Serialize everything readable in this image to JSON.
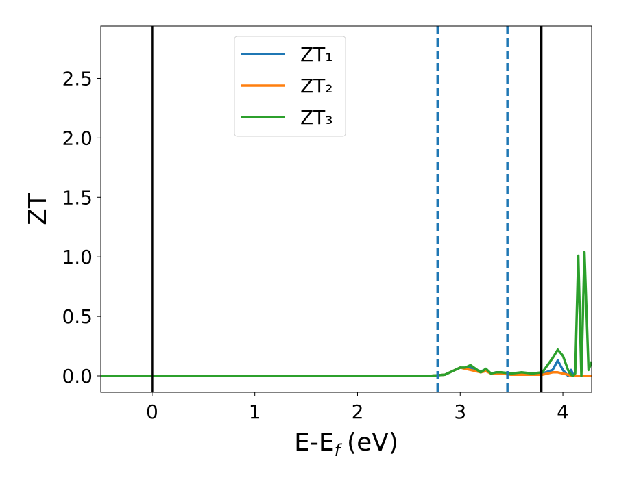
{
  "chart_data": {
    "type": "line",
    "x_label": [
      "E-E",
      "f",
      "(eV)"
    ],
    "y_label": "ZT",
    "x": [
      -0.5,
      2.7,
      2.85,
      2.95,
      3.0,
      3.05,
      3.1,
      3.15,
      3.2,
      3.25,
      3.3,
      3.35,
      3.4,
      3.5,
      3.6,
      3.7,
      3.8,
      3.9,
      3.95,
      4.0,
      4.05,
      4.08,
      4.1,
      4.12,
      4.15,
      4.18,
      4.21,
      4.25,
      4.28
    ],
    "series": [
      {
        "name": "ZT₁",
        "color": "#1f77b4",
        "values": [
          0,
          0,
          0.01,
          0.05,
          0.07,
          0.06,
          0.07,
          0.05,
          0.04,
          0.05,
          0.02,
          0.03,
          0.02,
          0.01,
          0.02,
          0.01,
          0.02,
          0.05,
          0.13,
          0.05,
          0.0,
          0.05,
          0.01,
          null,
          null,
          null,
          null,
          null,
          null
        ]
      },
      {
        "name": "ZT₂",
        "color": "#ff7f0e",
        "values": [
          0,
          0,
          0.01,
          0.05,
          0.07,
          0.06,
          0.05,
          0.04,
          0.03,
          0.04,
          0.02,
          0.02,
          0.02,
          0.01,
          0.01,
          0.01,
          0.01,
          0.03,
          0.03,
          0.02,
          0.01,
          0.0,
          0,
          0,
          0,
          0,
          0,
          0,
          0
        ]
      },
      {
        "name": "ZT₃",
        "color": "#2ca02c",
        "values": [
          0,
          0,
          0.01,
          0.05,
          0.07,
          0.07,
          0.09,
          0.06,
          0.03,
          0.06,
          0.02,
          0.03,
          0.03,
          0.02,
          0.03,
          0.02,
          0.03,
          0.15,
          0.22,
          0.17,
          0.05,
          0.01,
          0.0,
          0.02,
          1.01,
          0.0,
          1.04,
          0.05,
          0.12
        ]
      }
    ],
    "vlines": [
      {
        "x": 0,
        "color": "#000000",
        "style": "solid"
      },
      {
        "x": 2.78,
        "color": "#1f77b4",
        "style": "dashed"
      },
      {
        "x": 3.46,
        "color": "#1f77b4",
        "style": "dashed"
      },
      {
        "x": 3.79,
        "color": "#000000",
        "style": "solid"
      }
    ],
    "xlim": [
      -0.5,
      4.28
    ],
    "ylim": [
      -0.138,
      2.94
    ],
    "xticks": [
      0,
      1,
      2,
      3,
      4
    ],
    "yticks": [
      {
        "value": 0,
        "label": "0.0"
      },
      0.5,
      {
        "value": 1,
        "label": "1.0"
      },
      1.5,
      {
        "value": 2,
        "label": "2.0"
      },
      2.5
    ],
    "legend": "upper center",
    "grid": false
  }
}
